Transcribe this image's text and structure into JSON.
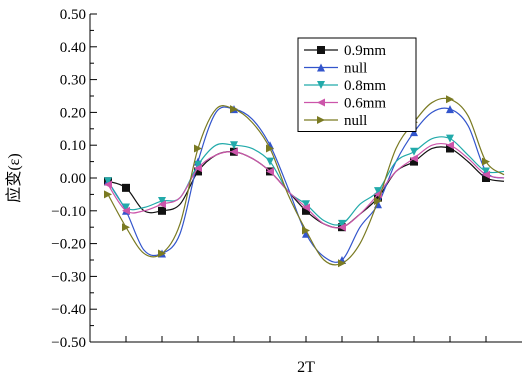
{
  "chart_data": {
    "type": "line",
    "title": "",
    "xlabel": "2T",
    "ylabel": "应变(ε)",
    "ylim": [
      -0.5,
      0.5
    ],
    "yticks": [
      "0.50",
      "0.40",
      "0.30",
      "0.20",
      "0.10",
      "0.00",
      "−0.10",
      "−0.20",
      "−0.30",
      "−0.40",
      "−0.50"
    ],
    "x_tick_count": 12,
    "grid": false,
    "legend_position": "top-right",
    "series": [
      {
        "name": "0.9mm",
        "color": "#111111",
        "marker": "square",
        "x": [
          0.5,
          1,
          1.5,
          2,
          2.5,
          3,
          3.5,
          4,
          4.5,
          5,
          5.5,
          6,
          6.5,
          7,
          7.5,
          8,
          8.5,
          9,
          9.5,
          10,
          10.5,
          11,
          11.5
        ],
        "y": [
          -0.01,
          -0.03,
          -0.1,
          -0.1,
          -0.08,
          0.02,
          0.07,
          0.08,
          0.06,
          0.02,
          -0.04,
          -0.1,
          -0.14,
          -0.15,
          -0.11,
          -0.06,
          0.02,
          0.05,
          0.09,
          0.09,
          0.05,
          0.0,
          -0.01
        ]
      },
      {
        "name": "null",
        "color": "#3355cc",
        "marker": "triangle-up",
        "x": [
          0.5,
          1,
          1.5,
          2,
          2.5,
          3,
          3.5,
          4,
          4.5,
          5,
          5.5,
          6,
          6.5,
          7,
          7.5,
          8,
          8.5,
          9,
          9.5,
          10,
          10.5,
          11,
          11.5
        ],
        "y": [
          -0.01,
          -0.1,
          -0.22,
          -0.23,
          -0.17,
          0.05,
          0.2,
          0.21,
          0.18,
          0.1,
          -0.03,
          -0.17,
          -0.24,
          -0.25,
          -0.15,
          -0.08,
          0.05,
          0.14,
          0.2,
          0.21,
          0.16,
          0.02,
          0.0
        ]
      },
      {
        "name": "0.8mm",
        "color": "#22aaaa",
        "marker": "triangle-down",
        "x": [
          0.5,
          1,
          1.5,
          2,
          2.5,
          3,
          3.5,
          4,
          4.5,
          5,
          5.5,
          6,
          6.5,
          7,
          7.5,
          8,
          8.5,
          9,
          9.5,
          10,
          10.5,
          11,
          11.5
        ],
        "y": [
          -0.01,
          -0.09,
          -0.09,
          -0.07,
          -0.06,
          0.04,
          0.1,
          0.1,
          0.09,
          0.05,
          -0.04,
          -0.08,
          -0.13,
          -0.14,
          -0.08,
          -0.04,
          0.05,
          0.08,
          0.12,
          0.12,
          0.07,
          0.02,
          0.02
        ]
      },
      {
        "name": "0.6mm",
        "color": "#cc55aa",
        "marker": "triangle-left",
        "x": [
          0.5,
          1,
          1.5,
          2,
          2.5,
          3,
          3.5,
          4,
          4.5,
          5,
          5.5,
          6,
          6.5,
          7,
          7.5,
          8,
          8.5,
          9,
          9.5,
          10,
          10.5,
          11,
          11.5
        ],
        "y": [
          -0.02,
          -0.1,
          -0.1,
          -0.08,
          -0.06,
          0.03,
          0.07,
          0.08,
          0.06,
          0.02,
          -0.04,
          -0.09,
          -0.14,
          -0.15,
          -0.11,
          -0.05,
          0.02,
          0.06,
          0.1,
          0.1,
          0.06,
          0.01,
          0.0
        ]
      },
      {
        "name": "null",
        "color": "#7a7a22",
        "marker": "triangle-right",
        "x": [
          0.5,
          1,
          1.5,
          2,
          2.5,
          3,
          3.5,
          4,
          4.5,
          5,
          5.5,
          6,
          6.5,
          7,
          7.5,
          8,
          8.5,
          9,
          9.5,
          10,
          10.5,
          11,
          11.5
        ],
        "y": [
          -0.05,
          -0.15,
          -0.23,
          -0.23,
          -0.14,
          0.09,
          0.21,
          0.21,
          0.17,
          0.09,
          -0.05,
          -0.16,
          -0.25,
          -0.26,
          -0.2,
          -0.07,
          0.09,
          0.17,
          0.23,
          0.24,
          0.19,
          0.05,
          0.01
        ]
      }
    ]
  }
}
